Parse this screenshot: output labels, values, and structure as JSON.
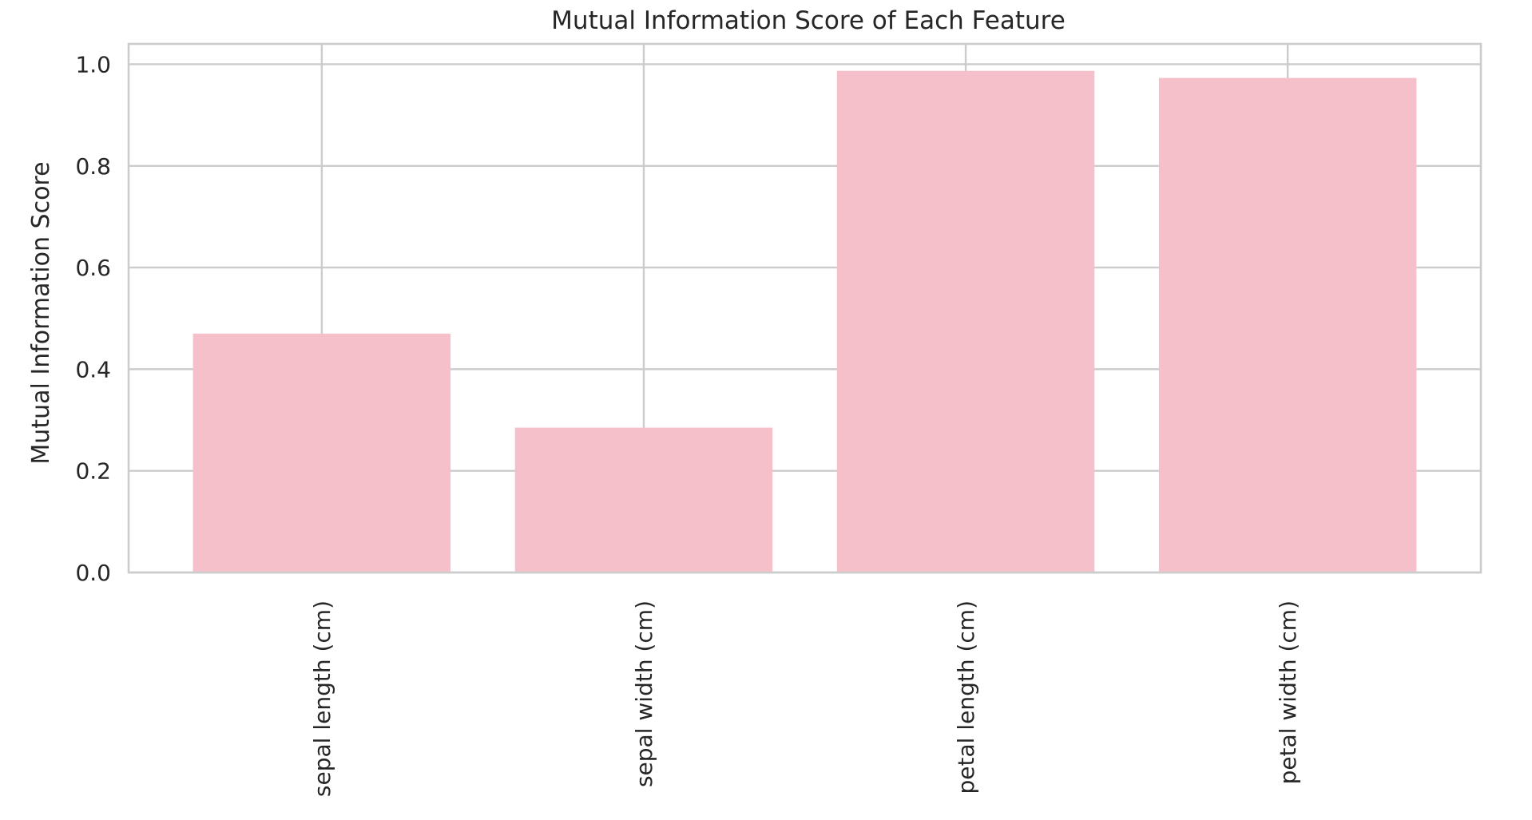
{
  "chart_data": {
    "type": "bar",
    "title": "Mutual Information Score of Each Feature",
    "xlabel": "",
    "ylabel": "Mutual Information Score",
    "categories": [
      "sepal length (cm)",
      "sepal width (cm)",
      "petal length (cm)",
      "petal width (cm)"
    ],
    "values": [
      0.47,
      0.285,
      0.987,
      0.973
    ],
    "ylim": [
      0,
      1.04
    ],
    "yticks": [
      0.0,
      0.2,
      0.4,
      0.6,
      0.8,
      1.0
    ],
    "ytick_labels": [
      "0.0",
      "0.2",
      "0.4",
      "0.6",
      "0.8",
      "1.0"
    ],
    "grid": true,
    "bar_color": "#f6c0cb",
    "grid_color": "#cccccc",
    "text_color": "#262626"
  }
}
